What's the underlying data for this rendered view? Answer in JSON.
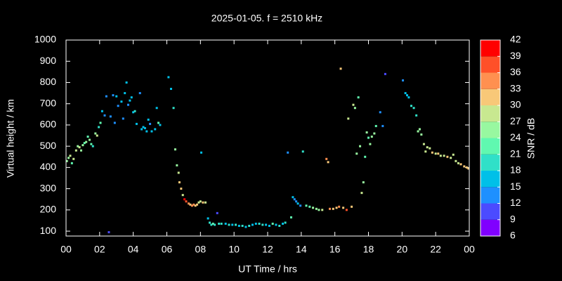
{
  "chart_data": {
    "type": "scatter",
    "title": "2025-01-05. f = 2510 kHz",
    "xlabel": "UT Time / hrs",
    "ylabel": "Virtual height / km",
    "colorbar_label": "SNR / dB",
    "xlim": [
      0,
      24
    ],
    "xticks": [
      {
        "value": 0,
        "label": "00"
      },
      {
        "value": 2,
        "label": "02"
      },
      {
        "value": 4,
        "label": "04"
      },
      {
        "value": 6,
        "label": "06"
      },
      {
        "value": 8,
        "label": "08"
      },
      10,
      12,
      14,
      16,
      18,
      20,
      22,
      {
        "value": 24,
        "label": "00"
      }
    ],
    "ylim": [
      77,
      1000
    ],
    "yticks": [
      100,
      200,
      300,
      400,
      500,
      600,
      700,
      800,
      900,
      1000
    ],
    "clim": [
      6,
      42
    ],
    "cticks": [
      6,
      9,
      12,
      15,
      18,
      21,
      24,
      27,
      30,
      33,
      36,
      39,
      42
    ],
    "colormap": [
      "#8000ff",
      "#4b4bff",
      "#1e90ff",
      "#00c0e8",
      "#30e0c8",
      "#60f8b0",
      "#98f8a0",
      "#c8e890",
      "#f8c878",
      "#ff9050",
      "#ff5028",
      "#ff0000"
    ],
    "x": [
      0.05,
      0.15,
      0.25,
      0.35,
      0.45,
      0.6,
      0.7,
      0.8,
      0.9,
      1.0,
      1.1,
      1.2,
      1.3,
      1.4,
      1.5,
      1.6,
      1.75,
      1.85,
      1.95,
      2.05,
      2.15,
      2.3,
      2.4,
      2.55,
      2.65,
      2.8,
      2.9,
      3.0,
      3.1,
      3.3,
      3.4,
      3.5,
      3.6,
      3.7,
      3.8,
      3.9,
      4.0,
      4.1,
      4.2,
      4.4,
      4.5,
      4.6,
      4.7,
      4.8,
      4.9,
      5.0,
      5.1,
      5.3,
      5.4,
      5.5,
      5.6,
      6.1,
      6.25,
      6.4,
      6.5,
      6.6,
      6.7,
      6.75,
      6.85,
      6.95,
      7.05,
      7.15,
      7.3,
      7.4,
      7.5,
      7.6,
      7.7,
      7.8,
      7.9,
      8.0,
      8.05,
      8.15,
      8.3,
      8.45,
      8.55,
      8.65,
      8.75,
      8.85,
      9.0,
      9.1,
      9.25,
      9.5,
      9.7,
      9.9,
      10.1,
      10.3,
      10.5,
      10.7,
      10.9,
      11.1,
      11.3,
      11.5,
      11.7,
      11.9,
      12.1,
      12.3,
      12.5,
      12.7,
      12.9,
      13.05,
      13.2,
      13.4,
      13.5,
      13.6,
      13.7,
      13.8,
      13.95,
      14.1,
      14.3,
      14.5,
      14.7,
      14.9,
      15.05,
      15.25,
      15.5,
      15.6,
      15.7,
      15.9,
      16.1,
      16.25,
      16.35,
      16.5,
      16.7,
      16.8,
      17.0,
      17.1,
      17.2,
      17.3,
      17.4,
      17.5,
      17.6,
      17.7,
      17.8,
      17.9,
      18.0,
      18.1,
      18.2,
      18.35,
      18.45,
      18.7,
      18.85,
      19.0,
      20.05,
      20.2,
      20.3,
      20.4,
      20.55,
      20.7,
      20.85,
      20.95,
      21.05,
      21.15,
      21.3,
      21.4,
      21.5,
      21.65,
      21.8,
      22.0,
      22.15,
      22.3,
      22.5,
      22.7,
      22.9,
      23.05,
      23.2,
      23.35,
      23.5,
      23.7,
      23.85,
      23.95
    ],
    "y": [
      430,
      445,
      455,
      420,
      440,
      480,
      500,
      495,
      480,
      505,
      515,
      520,
      545,
      530,
      510,
      500,
      560,
      550,
      590,
      610,
      665,
      645,
      735,
      95,
      640,
      740,
      610,
      735,
      690,
      710,
      630,
      750,
      800,
      695,
      715,
      730,
      660,
      665,
      605,
      750,
      580,
      590,
      585,
      570,
      625,
      605,
      570,
      580,
      680,
      610,
      600,
      825,
      770,
      680,
      485,
      410,
      375,
      330,
      300,
      270,
      250,
      240,
      230,
      225,
      220,
      225,
      220,
      225,
      235,
      240,
      470,
      235,
      235,
      160,
      140,
      130,
      135,
      130,
      185,
      135,
      135,
      135,
      130,
      130,
      130,
      125,
      125,
      120,
      125,
      130,
      135,
      135,
      130,
      130,
      125,
      135,
      130,
      125,
      135,
      140,
      470,
      165,
      260,
      250,
      240,
      230,
      220,
      475,
      220,
      215,
      210,
      205,
      200,
      200,
      440,
      425,
      205,
      205,
      210,
      215,
      865,
      210,
      200,
      630,
      215,
      695,
      680,
      465,
      730,
      500,
      280,
      330,
      450,
      565,
      540,
      510,
      545,
      560,
      595,
      660,
      595,
      840,
      810,
      750,
      740,
      730,
      690,
      680,
      645,
      570,
      580,
      555,
      510,
      475,
      495,
      490,
      470,
      465,
      465,
      455,
      455,
      450,
      445,
      460,
      430,
      420,
      415,
      405,
      400,
      395
    ],
    "snr": [
      24,
      24,
      27,
      21,
      27,
      27,
      24,
      27,
      24,
      24,
      21,
      24,
      21,
      24,
      21,
      18,
      24,
      27,
      18,
      21,
      15,
      12,
      12,
      9,
      12,
      12,
      12,
      15,
      12,
      15,
      12,
      15,
      15,
      12,
      15,
      15,
      15,
      18,
      15,
      12,
      15,
      15,
      15,
      15,
      15,
      12,
      15,
      15,
      15,
      21,
      15,
      15,
      15,
      18,
      24,
      24,
      27,
      30,
      30,
      27,
      39,
      36,
      33,
      30,
      33,
      33,
      30,
      30,
      27,
      27,
      15,
      30,
      27,
      15,
      18,
      18,
      21,
      18,
      9,
      18,
      18,
      15,
      18,
      15,
      18,
      15,
      18,
      15,
      18,
      15,
      15,
      18,
      18,
      15,
      15,
      21,
      15,
      18,
      15,
      18,
      12,
      21,
      15,
      12,
      12,
      15,
      12,
      18,
      21,
      21,
      24,
      24,
      24,
      27,
      33,
      30,
      33,
      30,
      30,
      33,
      30,
      30,
      36,
      27,
      30,
      27,
      24,
      24,
      21,
      24,
      27,
      24,
      21,
      24,
      21,
      24,
      24,
      24,
      21,
      12,
      12,
      9,
      12,
      15,
      15,
      15,
      18,
      18,
      18,
      24,
      24,
      24,
      27,
      27,
      27,
      27,
      30,
      27,
      30,
      27,
      27,
      30,
      27,
      27,
      27,
      27,
      30,
      30,
      30,
      30
    ]
  }
}
